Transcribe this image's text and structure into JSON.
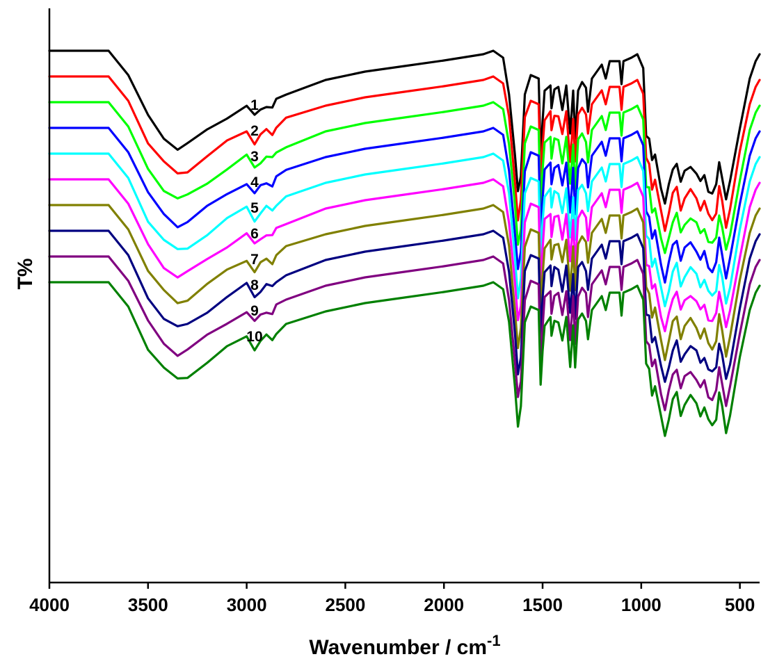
{
  "chart_data": {
    "type": "line",
    "xlabel": "Wavenumber / cm",
    "xlabel_superscript": "-1",
    "ylabel": "T%",
    "xlim": [
      4000,
      400
    ],
    "x_reversed": true,
    "xticks": [
      4000,
      3500,
      3000,
      2500,
      2000,
      1500,
      1000,
      500
    ],
    "yticks": [],
    "grid": false,
    "series": [
      {
        "name": "1",
        "color": "#000000",
        "offset": 10
      },
      {
        "name": "2",
        "color": "#ff0000",
        "offset": 9
      },
      {
        "name": "3",
        "color": "#00ff00",
        "offset": 8
      },
      {
        "name": "4",
        "color": "#0000ff",
        "offset": 7
      },
      {
        "name": "5",
        "color": "#00ffff",
        "offset": 6
      },
      {
        "name": "6",
        "color": "#ff00ff",
        "offset": 5
      },
      {
        "name": "7",
        "color": "#808000",
        "offset": 4
      },
      {
        "name": "8",
        "color": "#000080",
        "offset": 3
      },
      {
        "name": "9",
        "color": "#800080",
        "offset": 2
      },
      {
        "name": "10",
        "color": "#008000",
        "offset": 1
      }
    ],
    "spectrum_points": [
      [
        4000,
        0
      ],
      [
        3700,
        0
      ],
      [
        3600,
        -35
      ],
      [
        3500,
        -95
      ],
      [
        3420,
        -125
      ],
      [
        3350,
        -140
      ],
      [
        3300,
        -135
      ],
      [
        3200,
        -115
      ],
      [
        3100,
        -95
      ],
      [
        3000,
        -78
      ],
      [
        2960,
        -95
      ],
      [
        2930,
        -85
      ],
      [
        2900,
        -78
      ],
      [
        2870,
        -82
      ],
      [
        2850,
        -72
      ],
      [
        2800,
        -62
      ],
      [
        2600,
        -42
      ],
      [
        2400,
        -30
      ],
      [
        2200,
        -22
      ],
      [
        2000,
        -14
      ],
      [
        1800,
        -5
      ],
      [
        1750,
        0
      ],
      [
        1700,
        -10
      ],
      [
        1670,
        -60
      ],
      [
        1640,
        -150
      ],
      [
        1625,
        -205
      ],
      [
        1610,
        -180
      ],
      [
        1590,
        -60
      ],
      [
        1560,
        -35
      ],
      [
        1520,
        -40
      ],
      [
        1510,
        -150
      ],
      [
        1500,
        -100
      ],
      [
        1490,
        -60
      ],
      [
        1460,
        -50
      ],
      [
        1455,
        -80
      ],
      [
        1440,
        -55
      ],
      [
        1420,
        -55
      ],
      [
        1400,
        -85
      ],
      [
        1380,
        -50
      ],
      [
        1360,
        -120
      ],
      [
        1345,
        -60
      ],
      [
        1335,
        -125
      ],
      [
        1320,
        -55
      ],
      [
        1300,
        -45
      ],
      [
        1280,
        -55
      ],
      [
        1270,
        -85
      ],
      [
        1250,
        -40
      ],
      [
        1200,
        -20
      ],
      [
        1180,
        -40
      ],
      [
        1160,
        -15
      ],
      [
        1110,
        -15
      ],
      [
        1100,
        -48
      ],
      [
        1090,
        -15
      ],
      [
        1050,
        -10
      ],
      [
        1020,
        -5
      ],
      [
        990,
        -25
      ],
      [
        975,
        -120
      ],
      [
        960,
        -125
      ],
      [
        945,
        -160
      ],
      [
        930,
        -150
      ],
      [
        900,
        -195
      ],
      [
        880,
        -220
      ],
      [
        860,
        -195
      ],
      [
        840,
        -170
      ],
      [
        820,
        -160
      ],
      [
        800,
        -190
      ],
      [
        780,
        -175
      ],
      [
        750,
        -165
      ],
      [
        720,
        -175
      ],
      [
        700,
        -190
      ],
      [
        680,
        -180
      ],
      [
        660,
        -200
      ],
      [
        640,
        -205
      ],
      [
        620,
        -195
      ],
      [
        605,
        -160
      ],
      [
        590,
        -180
      ],
      [
        570,
        -215
      ],
      [
        550,
        -190
      ],
      [
        500,
        -110
      ],
      [
        450,
        -40
      ],
      [
        420,
        -15
      ],
      [
        400,
        -5
      ]
    ]
  }
}
